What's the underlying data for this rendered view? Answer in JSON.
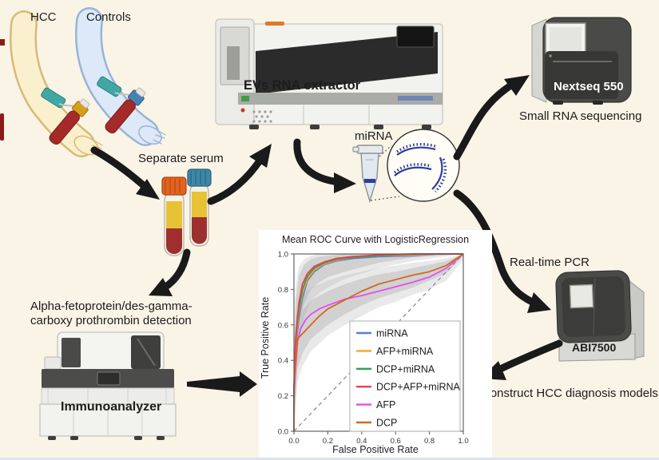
{
  "labels": {
    "hcc": "HCC",
    "controls": "Controls",
    "separate_serum": "Separate serum",
    "evs_extractor": "EVs RNA extractor",
    "mirna": "miRNA",
    "nextseq": "Nextseq 550",
    "small_rna_sequencing": "Small RNA sequencing",
    "realtime_pcr": "Real-time PCR",
    "abi7500": "ABI7500",
    "construct_models": "Construct HCC diagnosis models",
    "afp_dcp_line1": "Alpha-fetoprotein/des-gamma-",
    "afp_dcp_line2": "carboxy prothrombin detection",
    "immunoanalyzer": "Immunoanalyzer"
  },
  "colors": {
    "background": "#faf4e7",
    "arrow": "#1a1a1a",
    "hcc_arm": "#faf0cd",
    "controls_arm": "#dde9f8",
    "serum_yellow": "#e8c235",
    "blood_red": "#9e2f2f",
    "tube_cap_orange": "#e2631f",
    "tube_cap_blue": "#3e87a8",
    "rna_strand_blue": "#2b3f9e"
  },
  "chart_data": {
    "type": "line",
    "title": "Mean ROC Curve with LogisticRegression",
    "xlabel": "False Positive Rate",
    "ylabel": "True Positive Rate",
    "xlim": [
      0,
      1
    ],
    "ylim": [
      0,
      1
    ],
    "xticks": [
      0.0,
      0.2,
      0.4,
      0.6,
      0.8,
      1.0
    ],
    "yticks": [
      0.0,
      0.2,
      0.4,
      0.6,
      0.8,
      1.0
    ],
    "grid": false,
    "legend_position": "lower right",
    "diagonal_reference": true,
    "series": [
      {
        "name": "miRNA",
        "color": "#5a7ce2",
        "x": [
          0,
          0,
          0.01,
          0.02,
          0.03,
          0.05,
          0.08,
          0.12,
          0.18,
          0.25,
          0.35,
          0.5,
          0.7,
          0.85,
          1
        ],
        "y": [
          0,
          0.17,
          0.45,
          0.56,
          0.64,
          0.75,
          0.85,
          0.9,
          0.94,
          0.96,
          0.975,
          0.985,
          0.99,
          1,
          1
        ]
      },
      {
        "name": "AFP+miRNA",
        "color": "#ffa320",
        "x": [
          0,
          0,
          0.01,
          0.02,
          0.03,
          0.05,
          0.08,
          0.12,
          0.18,
          0.25,
          0.35,
          0.5,
          0.7,
          0.85,
          1
        ],
        "y": [
          0,
          0.2,
          0.48,
          0.59,
          0.67,
          0.78,
          0.86,
          0.91,
          0.945,
          0.965,
          0.98,
          0.99,
          0.995,
          1,
          1
        ]
      },
      {
        "name": "DCP+miRNA",
        "color": "#2ca44e",
        "x": [
          0,
          0,
          0.01,
          0.02,
          0.03,
          0.05,
          0.08,
          0.12,
          0.18,
          0.25,
          0.35,
          0.5,
          0.7,
          0.85,
          1
        ],
        "y": [
          0,
          0.22,
          0.5,
          0.61,
          0.69,
          0.8,
          0.875,
          0.92,
          0.95,
          0.97,
          0.98,
          0.99,
          1,
          1,
          1
        ]
      },
      {
        "name": "DCP+AFP+miRNA",
        "color": "#f23c50",
        "x": [
          0,
          0,
          0.01,
          0.02,
          0.03,
          0.05,
          0.08,
          0.12,
          0.18,
          0.25,
          0.35,
          0.5,
          0.7,
          0.85,
          1
        ],
        "y": [
          0,
          0.25,
          0.52,
          0.64,
          0.73,
          0.83,
          0.89,
          0.93,
          0.955,
          0.975,
          0.985,
          0.995,
          1,
          1,
          1
        ]
      },
      {
        "name": "AFP",
        "color": "#e44df0",
        "x": [
          0,
          0,
          0.02,
          0.04,
          0.07,
          0.1,
          0.15,
          0.2,
          0.3,
          0.4,
          0.5,
          0.6,
          0.7,
          0.8,
          0.9,
          1
        ],
        "y": [
          0,
          0.21,
          0.5,
          0.58,
          0.63,
          0.66,
          0.69,
          0.71,
          0.745,
          0.765,
          0.79,
          0.815,
          0.84,
          0.87,
          0.92,
          1
        ]
      },
      {
        "name": "DCP",
        "color": "#d2691e",
        "x": [
          0,
          0,
          0.02,
          0.04,
          0.07,
          0.1,
          0.15,
          0.2,
          0.3,
          0.4,
          0.5,
          0.6,
          0.7,
          0.8,
          0.9,
          1
        ],
        "y": [
          0,
          0.25,
          0.52,
          0.54,
          0.57,
          0.6,
          0.65,
          0.69,
          0.74,
          0.79,
          0.83,
          0.855,
          0.88,
          0.9,
          0.935,
          1
        ]
      }
    ],
    "confidence_bands": [
      {
        "group": "combined-models-outer",
        "fill": "#9a9a9a",
        "opacity": 0.22,
        "x": [
          0,
          0.01,
          0.03,
          0.06,
          0.1,
          0.15,
          0.2,
          0.3,
          0.5,
          0.7,
          1
        ],
        "lo": [
          0,
          0.3,
          0.52,
          0.64,
          0.74,
          0.78,
          0.81,
          0.86,
          0.92,
          0.96,
          1
        ],
        "hi": [
          0.5,
          0.82,
          0.93,
          0.97,
          0.99,
          1,
          1,
          1,
          1,
          1,
          1
        ]
      },
      {
        "group": "combined-models-inner",
        "fill": "#9a9a9a",
        "opacity": 0.3,
        "x": [
          0,
          0.01,
          0.03,
          0.06,
          0.1,
          0.15,
          0.2,
          0.3,
          0.5,
          0.7,
          1
        ],
        "lo": [
          0,
          0.4,
          0.62,
          0.72,
          0.8,
          0.84,
          0.87,
          0.9,
          0.95,
          0.98,
          1
        ],
        "hi": [
          0.4,
          0.74,
          0.88,
          0.94,
          0.97,
          0.985,
          0.99,
          1,
          1,
          1,
          1
        ]
      },
      {
        "group": "single-markers-outer",
        "fill": "#9a9a9a",
        "opacity": 0.22,
        "x": [
          0,
          0.02,
          0.05,
          0.1,
          0.2,
          0.3,
          0.4,
          0.5,
          0.6,
          0.7,
          0.8,
          0.9,
          1
        ],
        "lo": [
          0,
          0.27,
          0.37,
          0.45,
          0.54,
          0.6,
          0.65,
          0.7,
          0.73,
          0.77,
          0.8,
          0.85,
          0.97
        ],
        "hi": [
          0.5,
          0.7,
          0.76,
          0.81,
          0.85,
          0.88,
          0.9,
          0.92,
          0.935,
          0.95,
          0.96,
          0.975,
          1
        ]
      },
      {
        "group": "single-markers-inner",
        "fill": "#9a9a9a",
        "opacity": 0.3,
        "x": [
          0,
          0.02,
          0.05,
          0.1,
          0.2,
          0.3,
          0.4,
          0.5,
          0.6,
          0.7,
          0.8,
          0.9,
          1
        ],
        "lo": [
          0,
          0.35,
          0.44,
          0.52,
          0.6,
          0.66,
          0.71,
          0.75,
          0.78,
          0.81,
          0.85,
          0.89,
          0.99
        ],
        "hi": [
          0.4,
          0.62,
          0.68,
          0.74,
          0.79,
          0.83,
          0.86,
          0.885,
          0.9,
          0.92,
          0.94,
          0.96,
          1
        ]
      }
    ]
  }
}
